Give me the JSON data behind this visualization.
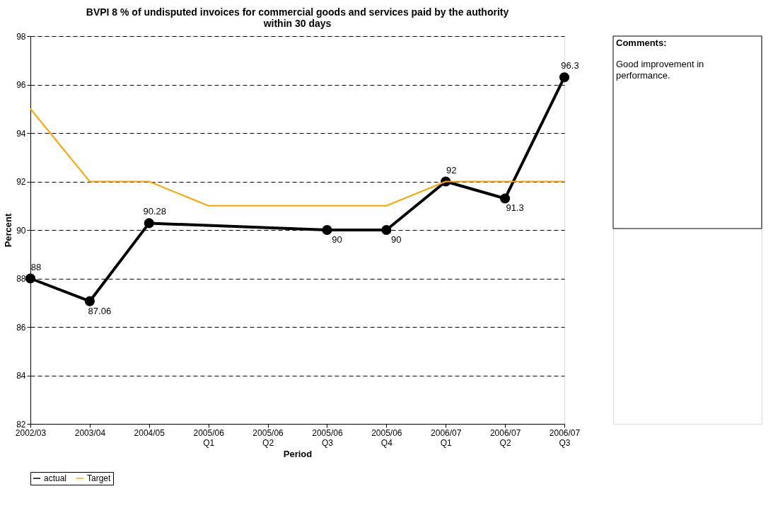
{
  "chart_data": {
    "type": "line",
    "title": "BVPI 8 % of undisputed invoices for commercial goods and services paid by the authority\nwithin 30 days",
    "xlabel": "Period",
    "ylabel": "Percent",
    "categories": [
      "2002/03",
      "2003/04",
      "2004/05",
      "2005/06\nQ1",
      "2005/06\nQ2",
      "2005/06\nQ3",
      "2005/06\nQ4",
      "2006/07\nQ1",
      "2006/07\nQ2",
      "2006/07\nQ3"
    ],
    "series": [
      {
        "name": "actual",
        "color": "#000000",
        "marker": "circle",
        "values": [
          88,
          87.06,
          90.28,
          null,
          null,
          90,
          90,
          92,
          91.3,
          96.3
        ],
        "value_labels": [
          "88",
          "87.06",
          "90.28",
          null,
          null,
          "90",
          "90",
          "92",
          "91.3",
          "96.3"
        ]
      },
      {
        "name": "Target",
        "color": "#ffa500",
        "marker": "none",
        "values": [
          95,
          92,
          92,
          91,
          91,
          91,
          91,
          92,
          92,
          92
        ]
      }
    ],
    "ylim": [
      82,
      98
    ],
    "yticks": [
      82,
      84,
      86,
      88,
      90,
      92,
      94,
      96,
      98
    ],
    "grid": "y",
    "line_style": "solid",
    "legend": "bottom",
    "annotations": [
      "Comments:",
      "Good improvement in performance."
    ]
  }
}
